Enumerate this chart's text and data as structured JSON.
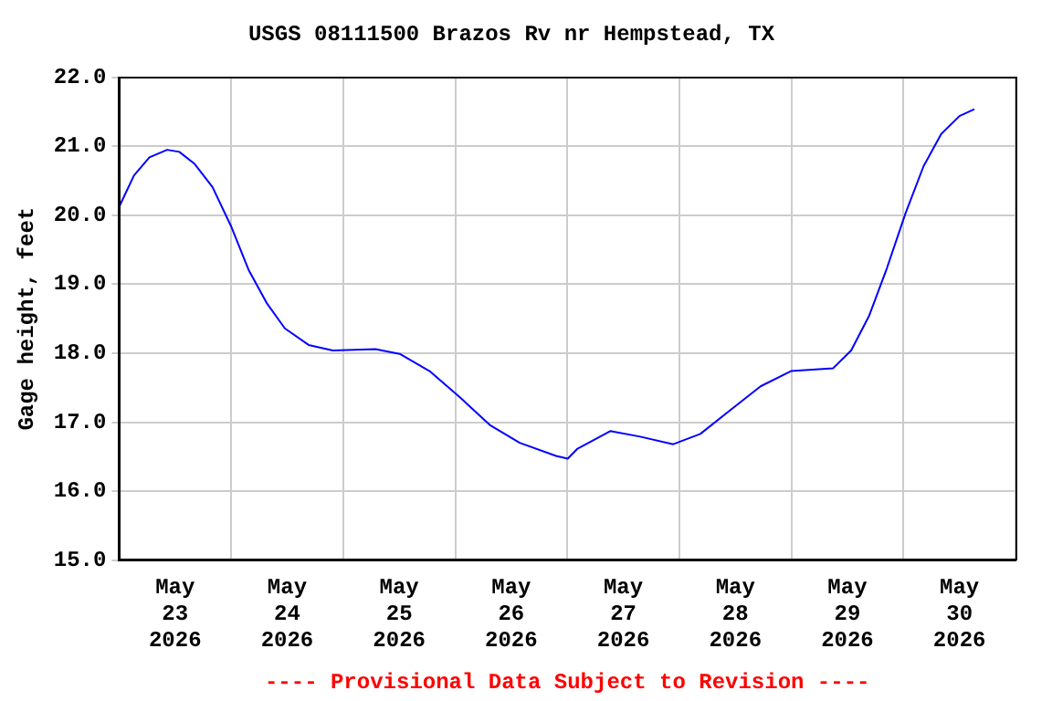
{
  "chart_data": {
    "type": "line",
    "title": "USGS 08111500 Brazos Rv nr Hempstead, TX",
    "ylabel": "Gage height, feet",
    "annotations": [
      "---- Provisional Data Subject to Revision ----"
    ],
    "x": [
      "2026-05-23T00:00",
      "2026-05-23T03:12",
      "2026-05-23T06:30",
      "2026-05-23T10:18",
      "2026-05-23T12:54",
      "2026-05-23T16:06",
      "2026-05-23T20:00",
      "2026-05-24T00:00",
      "2026-05-24T03:48",
      "2026-05-24T07:36",
      "2026-05-24T11:30",
      "2026-05-24T16:36",
      "2026-05-24T21:48",
      "2026-05-25T06:54",
      "2026-05-25T12:06",
      "2026-05-25T18:30",
      "2026-05-26T01:00",
      "2026-05-26T07:24",
      "2026-05-26T13:48",
      "2026-05-26T21:36",
      "2026-05-27T00:06",
      "2026-05-27T02:06",
      "2026-05-27T09:12",
      "2026-05-27T15:36",
      "2026-05-27T22:42",
      "2026-05-28T04:30",
      "2026-05-28T11:00",
      "2026-05-28T17:24",
      "2026-05-28T23:54",
      "2026-05-29T08:54",
      "2026-05-29T12:48",
      "2026-05-29T16:42",
      "2026-05-29T20:30",
      "2026-05-30T00:24",
      "2026-05-30T04:18",
      "2026-05-30T08:06",
      "2026-05-30T12:00",
      "2026-05-30T15:12"
    ],
    "series": [
      {
        "color": "#0000ff",
        "values": [
          20.12,
          20.58,
          20.84,
          20.95,
          20.92,
          20.75,
          20.41,
          19.84,
          19.2,
          18.73,
          18.36,
          18.12,
          18.04,
          18.06,
          17.99,
          17.74,
          17.36,
          16.96,
          16.7,
          16.51,
          16.47,
          16.61,
          16.87,
          16.79,
          16.68,
          16.83,
          17.18,
          17.52,
          17.74,
          17.78,
          18.04,
          18.55,
          19.24,
          20.02,
          20.71,
          21.18,
          21.44,
          21.54
        ]
      }
    ],
    "xlim": [
      "2026-05-23T00:00",
      "2026-05-31T00:00"
    ],
    "xticks": [
      {
        "value": "2026-05-23T00:00",
        "label": null
      },
      {
        "value": "2026-05-23T12:00",
        "label": "May 23 2026"
      },
      {
        "value": "2026-05-24T00:00",
        "label": null
      },
      {
        "value": "2026-05-24T12:00",
        "label": "May 24 2026"
      },
      {
        "value": "2026-05-25T00:00",
        "label": null
      },
      {
        "value": "2026-05-25T12:00",
        "label": "May 25 2026"
      },
      {
        "value": "2026-05-26T00:00",
        "label": null
      },
      {
        "value": "2026-05-26T12:00",
        "label": "May 26 2026"
      },
      {
        "value": "2026-05-27T00:00",
        "label": null
      },
      {
        "value": "2026-05-27T12:00",
        "label": "May 27 2026"
      },
      {
        "value": "2026-05-28T00:00",
        "label": null
      },
      {
        "value": "2026-05-28T12:00",
        "label": "May 28 2026"
      },
      {
        "value": "2026-05-29T00:00",
        "label": null
      },
      {
        "value": "2026-05-29T12:00",
        "label": "May 29 2026"
      },
      {
        "value": "2026-05-30T00:00",
        "label": null
      },
      {
        "value": "2026-05-30T12:00",
        "label": "May 30 2026"
      },
      {
        "value": "2026-05-31T00:00",
        "label": null
      }
    ],
    "ylim": [
      15,
      22
    ],
    "yticks": [
      {
        "value": 15,
        "label": "15.0"
      },
      {
        "value": 16,
        "label": "16.0"
      },
      {
        "value": 17,
        "label": "17.0"
      },
      {
        "value": 18,
        "label": "18.0"
      },
      {
        "value": 19,
        "label": "19.0"
      },
      {
        "value": 20,
        "label": "20.0"
      },
      {
        "value": 21,
        "label": "21.0"
      },
      {
        "value": 22,
        "label": "22.0"
      }
    ],
    "grid": true,
    "legend": false,
    "marker": "none",
    "line_style": "solid"
  }
}
